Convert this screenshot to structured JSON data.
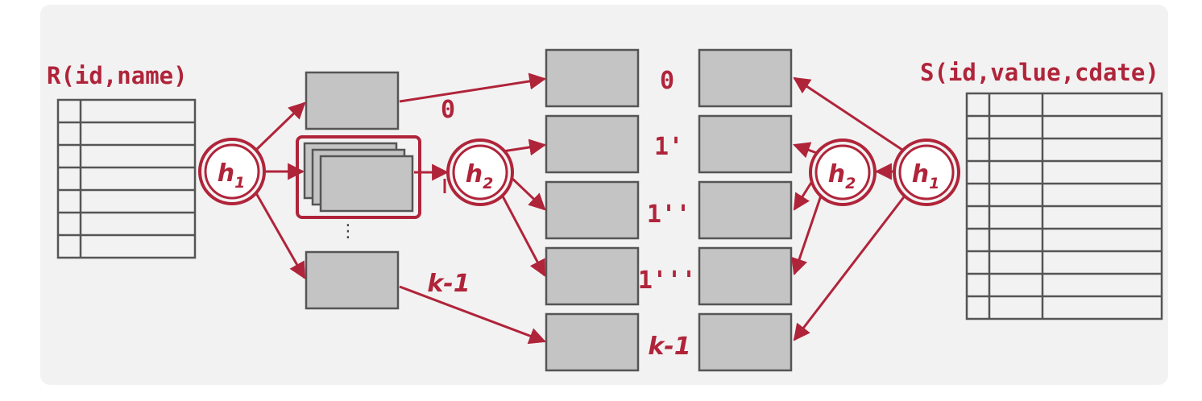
{
  "colors": {
    "accent": "#B0243A",
    "panel": "#F2F2F2",
    "box_fill": "#C4C4C4",
    "box_stroke": "#555555",
    "table_stroke": "#555555"
  },
  "relations": {
    "left": {
      "label": "R(id,name)",
      "rows": 7
    },
    "right": {
      "label": "S(id,value,cdate)",
      "rows": 10
    }
  },
  "hash_functions": {
    "h1": {
      "base": "h",
      "sub": "1"
    },
    "h2": {
      "base": "h",
      "sub": "2"
    }
  },
  "partition_labels": {
    "stage1_first": "0",
    "stage1_last": "k-1",
    "p0": "0",
    "p1": "1'",
    "p2": "1''",
    "p3": "1'''",
    "p4": "k-1"
  },
  "ellipsis": "⋮"
}
